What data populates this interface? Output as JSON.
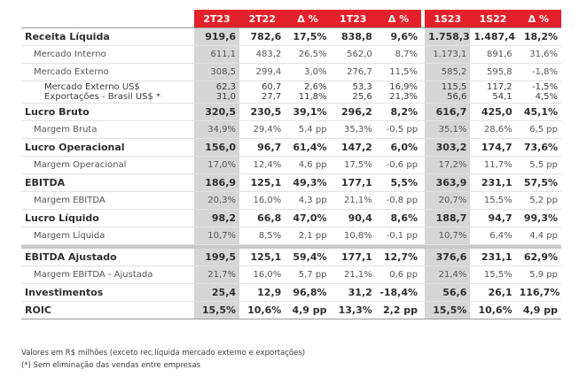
{
  "headers": [
    "",
    "2T23",
    "2T22",
    "Δ %",
    "1T23",
    "Δ %",
    "1S23",
    "1S22",
    "Δ %"
  ],
  "rows": [
    {
      "type": "bold",
      "label": "Receita Líquida",
      "v": [
        "919,6",
        "782,6",
        "17,5%",
        "838,8",
        "9,6%",
        "1.758,3",
        "1.487,4",
        "18,2%"
      ]
    },
    {
      "type": "sub",
      "label": "Mercado Interno",
      "v": [
        "611,1",
        "483,2",
        "26,5%",
        "562,0",
        "8,7%",
        "1.173,1",
        "891,6",
        "31,6%"
      ]
    },
    {
      "type": "sub",
      "label": "Mercado Externo",
      "v": [
        "308,5",
        "299,4",
        "3,0%",
        "276,7",
        "11,5%",
        "585,2",
        "595,8",
        "-1,8%"
      ]
    },
    {
      "type": "pair",
      "labels": [
        "Mercado Externo US$",
        "Exportações - Brasil US$ *"
      ],
      "v": [
        [
          "62,3",
          "31,0"
        ],
        [
          "60,7",
          "27,7"
        ],
        [
          "2,6%",
          "11,8%"
        ],
        [
          "53,3",
          "25,6"
        ],
        [
          "16,9%",
          "21,3%"
        ],
        [
          "115,5",
          "56,6"
        ],
        [
          "117,2",
          "54,1"
        ],
        [
          "-1,5%",
          "4,5%"
        ]
      ]
    },
    {
      "type": "bold",
      "label": "Lucro Bruto",
      "v": [
        "320,5",
        "230,5",
        "39,1%",
        "296,2",
        "8,2%",
        "616,7",
        "425,0",
        "45,1%"
      ]
    },
    {
      "type": "sub",
      "label": "Margem Bruta",
      "v": [
        "34,9%",
        "29,4%",
        "5,4 pp",
        "35,3%",
        "-0,5 pp",
        "35,1%",
        "28,6%",
        "6,5 pp"
      ]
    },
    {
      "type": "bold",
      "label": "Lucro Operacional",
      "v": [
        "156,0",
        "96,7",
        "61,4%",
        "147,2",
        "6,0%",
        "303,2",
        "174,7",
        "73,6%"
      ]
    },
    {
      "type": "sub",
      "label": "Margem Operacional",
      "v": [
        "17,0%",
        "12,4%",
        "4,6 pp",
        "17,5%",
        "-0,6 pp",
        "17,2%",
        "11,7%",
        "5,5 pp"
      ]
    },
    {
      "type": "bold",
      "label": "EBITDA",
      "v": [
        "186,9",
        "125,1",
        "49,3%",
        "177,1",
        "5,5%",
        "363,9",
        "231,1",
        "57,5%"
      ]
    },
    {
      "type": "sub",
      "label": "Margem EBITDA",
      "v": [
        "20,3%",
        "16,0%",
        "4,3 pp",
        "21,1%",
        "-0,8 pp",
        "20,7%",
        "15,5%",
        "5,2 pp"
      ]
    },
    {
      "type": "bold",
      "label": "Lucro Líquido",
      "v": [
        "98,2",
        "66,8",
        "47,0%",
        "90,4",
        "8,6%",
        "188,7",
        "94,7",
        "99,3%"
      ]
    },
    {
      "type": "sub",
      "label": "Margem Líquida",
      "v": [
        "10,7%",
        "8,5%",
        "2,1 pp",
        "10,8%",
        "-0,1 pp",
        "10,7%",
        "6,4%",
        "4,4 pp"
      ]
    },
    {
      "type": "sep"
    },
    {
      "type": "bold",
      "label": "EBITDA Ajustado",
      "v": [
        "199,5",
        "125,1",
        "59,4%",
        "177,1",
        "12,7%",
        "376,6",
        "231,1",
        "62,9%"
      ]
    },
    {
      "type": "sub",
      "label": "Margem EBITDA - Ajustada",
      "v": [
        "21,7%",
        "16,0%",
        "5,7 pp",
        "21,1%",
        "0,6 pp",
        "21,4%",
        "15,5%",
        "5,9 pp"
      ]
    },
    {
      "type": "bold",
      "label": "Investimentos",
      "v": [
        "25,4",
        "12,9",
        "96,8%",
        "31,2",
        "-18,4%",
        "56,6",
        "26,1",
        "116,7%"
      ]
    },
    {
      "type": "bold",
      "label": "ROIC",
      "v": [
        "15,5%",
        "10,6%",
        "4,9 pp",
        "13,3%",
        "2,2 pp",
        "15,5%",
        "10,6%",
        "4,9 pp"
      ]
    }
  ],
  "notes": [
    "Valores em R$ milhões (exceto rec.líquida mercado externo e exportações)",
    "(*) Sem eliminação das vendas entre empresas"
  ]
}
